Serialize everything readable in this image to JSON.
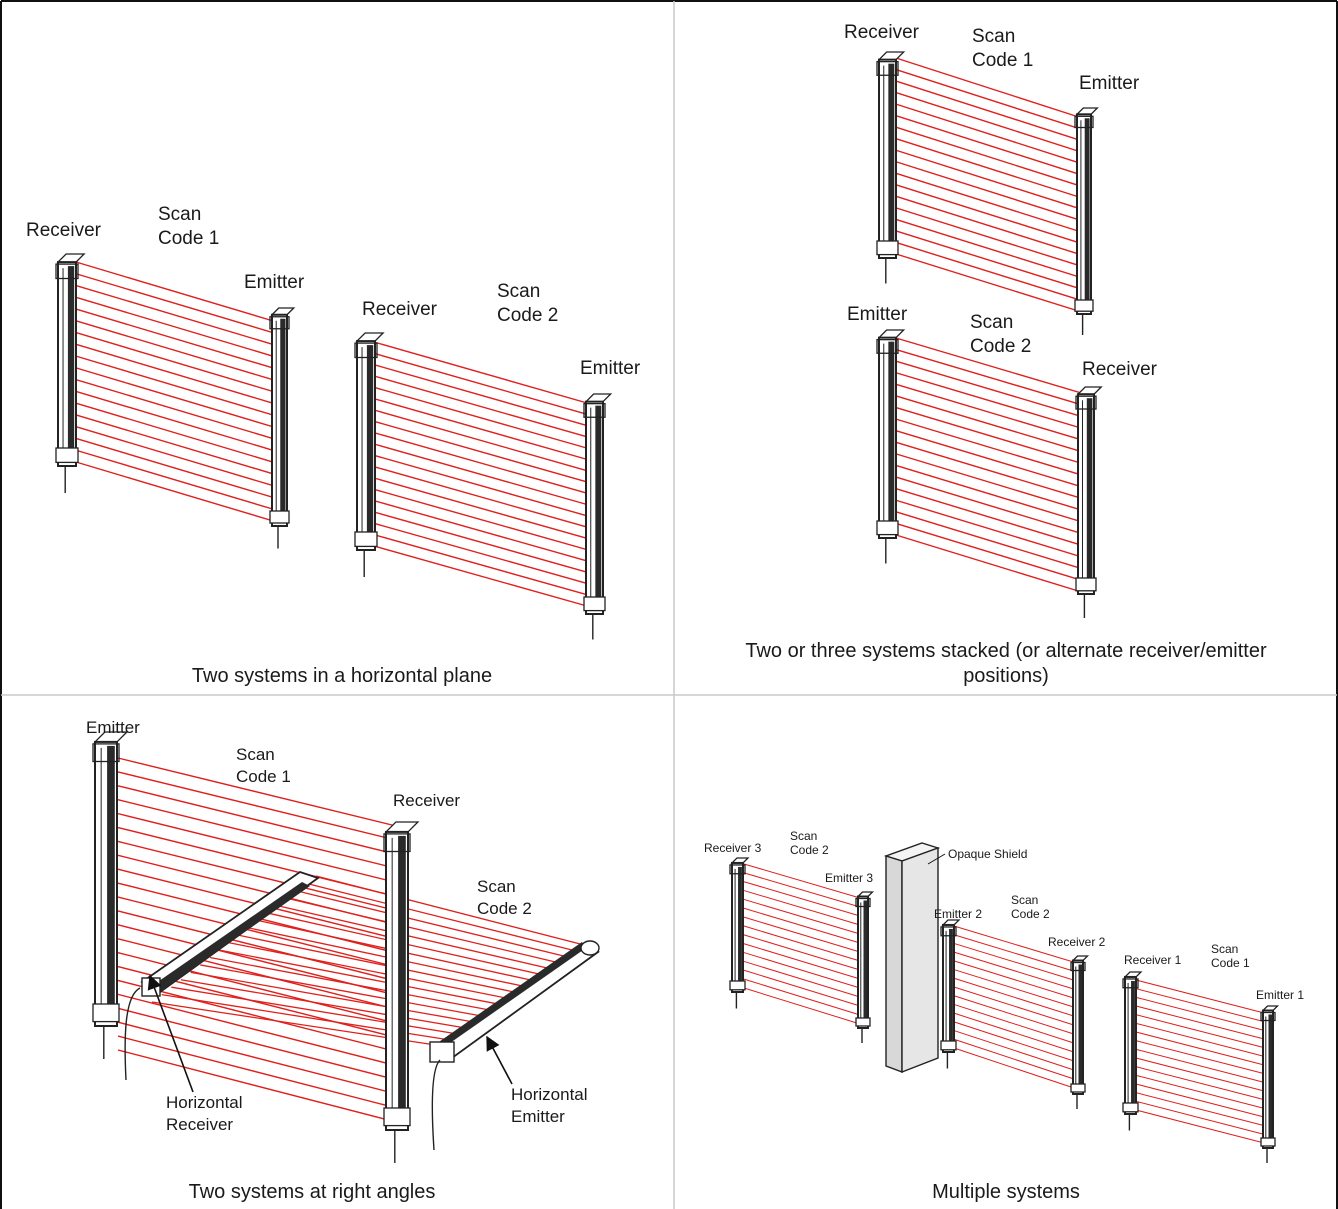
{
  "panels": [
    {
      "caption": [
        "Two systems in a horizontal plane"
      ],
      "labels": {
        "rx1": "Receiver",
        "sc1": [
          "Scan",
          "Code 1"
        ],
        "em1": "Emitter",
        "rx2": "Receiver",
        "sc2": [
          "Scan",
          "Code 2"
        ],
        "em2": "Emitter"
      }
    },
    {
      "caption": [
        "Two or three systems stacked (or alternate receiver/emitter",
        "positions)"
      ],
      "labels": {
        "rx1": "Receiver",
        "sc1": [
          "Scan",
          "Code 1"
        ],
        "em1": "Emitter",
        "em2": "Emitter",
        "sc2": [
          "Scan",
          "Code 2"
        ],
        "rx2": "Receiver"
      }
    },
    {
      "caption": [
        "Two systems at right angles"
      ],
      "labels": {
        "em": "Emitter",
        "sc1": [
          "Scan",
          "Code 1"
        ],
        "rx": "Receiver",
        "sc2": [
          "Scan",
          "Code 2"
        ],
        "hrx": [
          "Horizontal",
          "Receiver"
        ],
        "hem": [
          "Horizontal",
          "Emitter"
        ]
      }
    },
    {
      "caption": [
        "Multiple systems"
      ],
      "labels": {
        "rx3": "Receiver 3",
        "sc3": [
          "Scan",
          "Code 2"
        ],
        "em3": "Emitter 3",
        "shield": "Opaque Shield",
        "em2": "Emitter 2",
        "sc2": [
          "Scan",
          "Code 2"
        ],
        "rx2": "Receiver 2",
        "rx1": "Receiver 1",
        "sc1": [
          "Scan",
          "Code 1"
        ],
        "em1": "Emitter 1"
      }
    }
  ],
  "colors": {
    "beam": "#e0201c",
    "device": "#222222",
    "shield": "#e6e6e6",
    "grid": "#c8c8c8",
    "border": "#111111"
  }
}
